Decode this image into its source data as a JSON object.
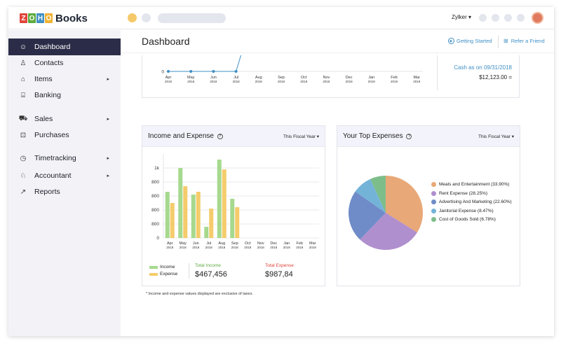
{
  "app": {
    "logo_letters": [
      "Z",
      "O",
      "H",
      "O"
    ],
    "logo_text": "Books",
    "organization": "Zylker ▾"
  },
  "colors": {
    "sidebar_active": "#2b2d48",
    "link": "#3f8fc4",
    "income": "#a6d98e",
    "expense": "#f5cc6b",
    "total_income": "#5cab3d",
    "total_expense": "#e0443b"
  },
  "sidebar": {
    "items": [
      {
        "label": "Dashboard",
        "icon": "dashboard-icon",
        "glyph": "☺",
        "has_submenu": false
      },
      {
        "label": "Contacts",
        "icon": "contacts-icon",
        "glyph": "♙",
        "has_submenu": false
      },
      {
        "label": "Items",
        "icon": "items-icon",
        "glyph": "⌂",
        "has_submenu": true
      },
      {
        "label": "Banking",
        "icon": "bank-icon",
        "glyph": "⌸",
        "has_submenu": false
      },
      {
        "label": "Sales",
        "icon": "cart-icon",
        "glyph": "⛟",
        "has_submenu": true
      },
      {
        "label": "Purchases",
        "icon": "bag-icon",
        "glyph": "⊡",
        "has_submenu": false
      },
      {
        "label": "Timetracking",
        "icon": "stopwatch-icon",
        "glyph": "◷",
        "has_submenu": true
      },
      {
        "label": "Accountant",
        "icon": "accountant-icon",
        "glyph": "♘",
        "has_submenu": true
      },
      {
        "label": "Reports",
        "icon": "reports-icon",
        "glyph": "↗",
        "has_submenu": false
      }
    ],
    "chevron": "▸"
  },
  "header": {
    "title": "Dashboard",
    "getting_started": "Getting Started",
    "refer_friend": "Refer a Friend"
  },
  "cash_flow": {
    "x_labels": [
      [
        "Apr",
        "2018"
      ],
      [
        "May",
        "2018"
      ],
      [
        "Jun",
        "2018"
      ],
      [
        "Jul",
        "2018"
      ],
      [
        "Aug",
        "2018"
      ],
      [
        "Sep",
        "2018"
      ],
      [
        "Oct",
        "2018"
      ],
      [
        "Nov",
        "2018"
      ],
      [
        "Dec",
        "2018"
      ],
      [
        "Jan",
        "2019"
      ],
      [
        "Feb",
        "2019"
      ],
      [
        "Mar",
        "2019"
      ]
    ],
    "y_zero_label": "0",
    "cash_label": "Cash as on 09/31/2018",
    "cash_value": "$12,123.00  ="
  },
  "income_expense": {
    "title": "Income and Expense",
    "period": "This Fiscal Year",
    "legend_income": "Income",
    "legend_expense": "Expense",
    "total_income_label": "Total Income",
    "total_income_value": "$467,456",
    "total_expense_label": "Total Expense",
    "total_expense_value": "$987,84"
  },
  "top_expenses": {
    "title": "Your Top Expenses",
    "period": "This Fiscal Year"
  },
  "footnote": "* Income and expense values displayed are exclusive of taxes.",
  "chart_data": [
    {
      "type": "line",
      "categories": [
        "Apr 2018",
        "May 2018",
        "Jun 2018",
        "Jul 2018",
        "Aug 2018",
        "Sep 2018",
        "Oct 2018",
        "Nov 2018",
        "Dec 2018",
        "Jan 2019",
        "Feb 2019",
        "Mar 2019"
      ],
      "series": [
        {
          "values": [
            0,
            0,
            0,
            0,
            null,
            null,
            null,
            null,
            null,
            null,
            null,
            null
          ]
        }
      ]
    },
    {
      "type": "bar",
      "title": "Income and Expense",
      "categories": [
        "Apr 2018",
        "May 2018",
        "Jun 2018",
        "Jul 2018",
        "Aug 2018",
        "Sep 2018",
        "Oct 2018",
        "Nov 2018",
        "Dec 2018",
        "Jan 2019",
        "Feb 2019",
        "Mar 2019"
      ],
      "x_tick_labels": [
        [
          "Apr",
          "2018"
        ],
        [
          "May",
          "2018"
        ],
        [
          "Jun",
          "2018"
        ],
        [
          "Jul",
          "2018"
        ],
        [
          "Aug",
          "2018"
        ],
        [
          "Sep",
          "2018"
        ],
        [
          "Oct",
          "2018"
        ],
        [
          "Nov",
          "2018"
        ],
        [
          "Dec",
          "2018"
        ],
        [
          "Jan",
          "2019"
        ],
        [
          "Feb",
          "2019"
        ],
        [
          "Mar",
          "2019"
        ]
      ],
      "y_tick_labels": [
        "0",
        "800",
        "800",
        "800",
        "800",
        "1k"
      ],
      "ylim": [
        0,
        5.8
      ],
      "series": [
        {
          "name": "Income",
          "color": "#a6d98e",
          "values": [
            3.3,
            5.0,
            3.1,
            0.8,
            5.6,
            2.8,
            0,
            0,
            0,
            0,
            0,
            0
          ]
        },
        {
          "name": "Expense",
          "color": "#f5cc6b",
          "values": [
            2.5,
            3.7,
            3.3,
            2.1,
            4.9,
            2.2,
            0,
            0,
            0,
            0,
            0,
            0
          ]
        }
      ],
      "grid": true,
      "legend": "bottom-left"
    },
    {
      "type": "pie",
      "title": "Your Top Expenses",
      "categories": [
        "Meals and Entertainment (33.90%)",
        "Rent Expense (28.25%)",
        "Advertising And Marketing (22.60%)",
        "Janitorial Expense (8.47%)",
        "Cost of Goods Sold (6.78%)"
      ],
      "values": [
        33.9,
        28.25,
        22.6,
        8.47,
        6.78
      ],
      "colors": [
        "#e8a877",
        "#b08fce",
        "#6f8cc8",
        "#74b3d8",
        "#7dbd8a"
      ],
      "legend": "right"
    }
  ]
}
